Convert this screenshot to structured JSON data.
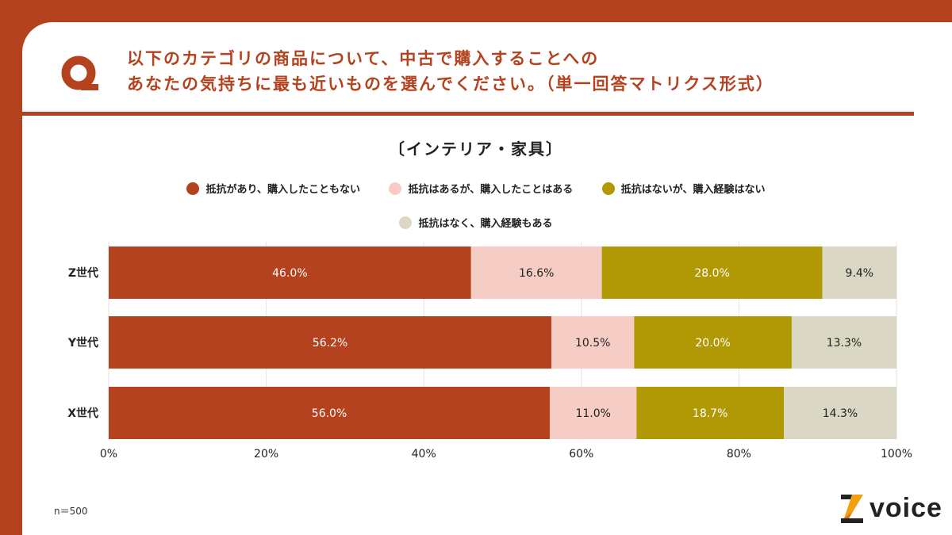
{
  "question": {
    "line1": "以下のカテゴリの商品について、中古で購入することへの",
    "line2": "あなたの気持ちに最も近いものを選んでください。（単一回答マトリクス形式）"
  },
  "footnote": "n＝500",
  "logo_text": "voice",
  "chart_data": {
    "type": "bar",
    "orientation": "horizontal-stacked-100",
    "title": "〔インテリア・家具〕",
    "categories": [
      "Z世代",
      "Y世代",
      "X世代"
    ],
    "series": [
      {
        "name": "抵抗があり、購入したこともない",
        "color": "#B5421F",
        "values": [
          46.0,
          56.2,
          56.0
        ],
        "labels": [
          "46.0%",
          "56.2%",
          "56.0%"
        ]
      },
      {
        "name": "抵抗はあるが、購入したことはある",
        "color": "#F6CDC4",
        "values": [
          16.6,
          10.5,
          11.0
        ],
        "labels": [
          "16.6%",
          "10.5%",
          "11.0%"
        ]
      },
      {
        "name": "抵抗はないが、購入経験はない",
        "color": "#B09904",
        "values": [
          28.0,
          20.0,
          18.7
        ],
        "labels": [
          "28.0%",
          "20.0%",
          "18.7%"
        ]
      },
      {
        "name": "抵抗はなく、購入経験もある",
        "color": "#DBD7C5",
        "values": [
          9.4,
          13.3,
          14.3
        ],
        "labels": [
          "9.4%",
          "13.3%",
          "14.3%"
        ]
      }
    ],
    "xlim": [
      0,
      100
    ],
    "xticks": [
      "0%",
      "20%",
      "40%",
      "60%",
      "80%",
      "100%"
    ],
    "grid": true,
    "legend_position": "top"
  }
}
